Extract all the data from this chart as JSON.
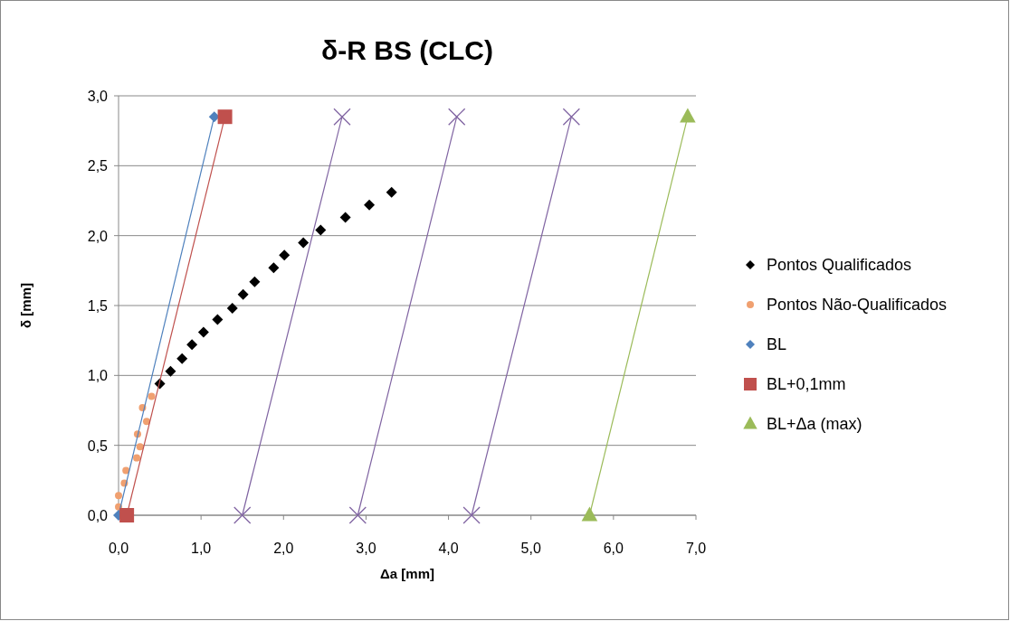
{
  "chart_data": {
    "type": "scatter",
    "title": "δ-R BS (CLC)",
    "xlabel": "Δa [mm]",
    "ylabel": "δ [mm]",
    "xlim": [
      0,
      7
    ],
    "xticks": [
      {
        "value": 0,
        "label": "0,0"
      },
      {
        "value": 1,
        "label": "1,0"
      },
      {
        "value": 2,
        "label": "2,0"
      },
      {
        "value": 3,
        "label": "3,0"
      },
      {
        "value": 4,
        "label": "4,0"
      },
      {
        "value": 5,
        "label": "5,0"
      },
      {
        "value": 6,
        "label": "6,0"
      },
      {
        "value": 7,
        "label": "7,0"
      }
    ],
    "ylim": [
      0,
      3
    ],
    "yticks": [
      {
        "value": 0,
        "label": "0,0"
      },
      {
        "value": 0.5,
        "label": "0,5"
      },
      {
        "value": 1,
        "label": "1,0"
      },
      {
        "value": 1.5,
        "label": "1,5"
      },
      {
        "value": 2,
        "label": "2,0"
      },
      {
        "value": 2.5,
        "label": "2,5"
      },
      {
        "value": 3,
        "label": "3,0"
      }
    ],
    "grid": "y",
    "legend": "right",
    "series": [
      {
        "name": "Pontos Qualificados",
        "marker": "diamond",
        "color": "#000000",
        "x": [
          0.5,
          0.63,
          0.77,
          0.89,
          1.03,
          1.2,
          1.38,
          1.51,
          1.65,
          1.88,
          2.01,
          2.24,
          2.45,
          2.75,
          3.04,
          3.31
        ],
        "values": [
          0.94,
          1.03,
          1.12,
          1.22,
          1.31,
          1.4,
          1.48,
          1.58,
          1.67,
          1.77,
          1.86,
          1.95,
          2.04,
          2.13,
          2.22,
          2.31
        ]
      },
      {
        "name": "Pontos Não-Qualificados",
        "marker": "circle",
        "color": "#f0a070",
        "x": [
          0,
          0,
          0.07,
          0.09,
          0.22,
          0.26,
          0.23,
          0.34,
          0.29,
          0.4
        ],
        "values": [
          0.06,
          0.14,
          0.23,
          0.32,
          0.41,
          0.49,
          0.58,
          0.67,
          0.77,
          0.85
        ]
      },
      {
        "name": "BL",
        "type": "line",
        "marker": "diamond",
        "color": "#4f81bd",
        "x": [
          0,
          1.16
        ],
        "values": [
          0,
          2.85
        ]
      },
      {
        "name": "BL+0,1mm",
        "type": "line",
        "marker": "square",
        "color": "#c0504d",
        "x": [
          0.1,
          1.29
        ],
        "values": [
          0,
          2.85
        ]
      },
      {
        "type": "line",
        "marker": "cross",
        "color": "#8064a2",
        "x": [
          1.5,
          2.71
        ],
        "values": [
          0,
          2.85
        ]
      },
      {
        "type": "line",
        "marker": "cross",
        "color": "#8064a2",
        "x": [
          2.9,
          4.1
        ],
        "values": [
          0,
          2.85
        ]
      },
      {
        "type": "line",
        "marker": "cross",
        "color": "#8064a2",
        "x": [
          4.28,
          5.49
        ],
        "values": [
          0,
          2.85
        ]
      },
      {
        "name": "BL+Δa (max)",
        "type": "line",
        "marker": "triangle",
        "color": "#9bbb59",
        "x": [
          5.71,
          6.9
        ],
        "values": [
          0,
          2.85
        ]
      }
    ]
  }
}
